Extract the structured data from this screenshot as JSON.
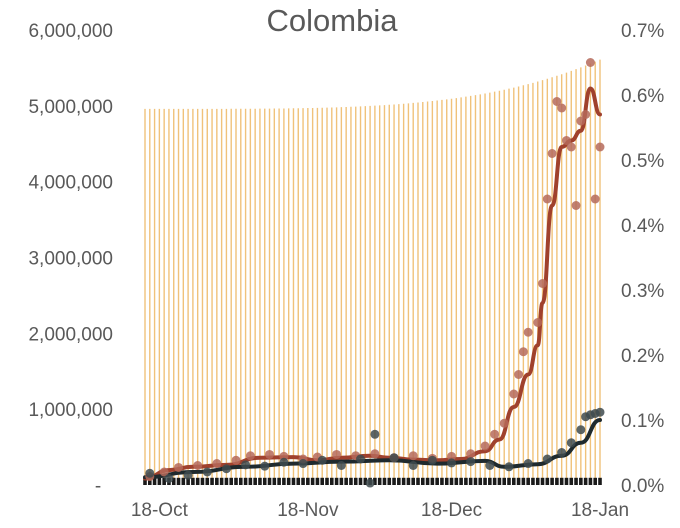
{
  "chart_data": {
    "type": "bar+line+scatter",
    "title": "Colombia",
    "x_tick_labels": [
      "18-Oct",
      "18-Nov",
      "18-Dec",
      "18-Jan"
    ],
    "y_left_tick_labels": [
      "-",
      "1,000,000",
      "2,000,000",
      "3,000,000",
      "4,000,000",
      "5,000,000",
      "6,000,000"
    ],
    "y_right_tick_labels": [
      "0.0%",
      "0.1%",
      "0.2%",
      "0.3%",
      "0.4%",
      "0.5%",
      "0.6%",
      "0.7%"
    ],
    "ylim_left": [
      0,
      6000000
    ],
    "ylim_right": [
      0,
      0.007
    ],
    "x_start": "2020-10-15",
    "x_end": "2021-01-18",
    "grid": false,
    "legend": "none",
    "colors": {
      "bars_tall": "#f0c27a",
      "bars_small": "#1a1a1a",
      "red_line": "#a0412d",
      "red_points": "#b56a5a",
      "dark_line": "#1f2a2e",
      "dark_points": "#3e4a4e"
    },
    "series": [
      {
        "kind": "bar",
        "axis": "left",
        "color_key": "bars_tall",
        "start": 4960000,
        "end": 5610000
      },
      {
        "kind": "bar",
        "axis": "left",
        "color_key": "bars_small",
        "value": 95000
      },
      {
        "kind": "line",
        "axis": "right",
        "color_key": "red_line",
        "points": [
          [
            "2020-10-15",
            0.0001
          ],
          [
            "2020-10-20",
            0.00023
          ],
          [
            "2020-10-25",
            0.00028
          ],
          [
            "2020-11-01",
            0.00031
          ],
          [
            "2020-11-08",
            0.00042
          ],
          [
            "2020-11-15",
            0.00043
          ],
          [
            "2020-11-20",
            0.00038
          ],
          [
            "2020-11-25",
            0.00042
          ],
          [
            "2020-12-01",
            0.00045
          ],
          [
            "2020-12-05",
            0.00042
          ],
          [
            "2020-12-10",
            0.00039
          ],
          [
            "2020-12-15",
            0.00038
          ],
          [
            "2020-12-20",
            0.0004
          ],
          [
            "2020-12-25",
            0.00052
          ],
          [
            "2020-12-28",
            0.0007
          ],
          [
            "2020-12-31",
            0.0012
          ],
          [
            "2021-01-03",
            0.0017
          ],
          [
            "2021-01-05",
            0.00215
          ],
          [
            "2021-01-06",
            0.0028
          ],
          [
            "2021-01-08",
            0.0043
          ],
          [
            "2021-01-10",
            0.0052
          ],
          [
            "2021-01-12",
            0.0053
          ],
          [
            "2021-01-14",
            0.00545
          ],
          [
            "2021-01-16",
            0.0061
          ],
          [
            "2021-01-18",
            0.0057
          ]
        ]
      },
      {
        "kind": "scatter",
        "axis": "right",
        "color_key": "red_points",
        "points": [
          [
            "2020-10-16",
            0.00013
          ],
          [
            "2020-10-19",
            0.0002
          ],
          [
            "2020-10-22",
            0.00027
          ],
          [
            "2020-10-26",
            0.0003
          ],
          [
            "2020-10-30",
            0.00033
          ],
          [
            "2020-11-03",
            0.00038
          ],
          [
            "2020-11-06",
            0.00045
          ],
          [
            "2020-11-10",
            0.00047
          ],
          [
            "2020-11-13",
            0.00044
          ],
          [
            "2020-11-17",
            0.0004
          ],
          [
            "2020-11-20",
            0.00043
          ],
          [
            "2020-11-24",
            0.00047
          ],
          [
            "2020-11-28",
            0.00045
          ],
          [
            "2020-12-02",
            0.00048
          ],
          [
            "2020-12-06",
            0.00042
          ],
          [
            "2020-12-10",
            0.00045
          ],
          [
            "2020-12-14",
            0.00041
          ],
          [
            "2020-12-18",
            0.00044
          ],
          [
            "2020-12-22",
            0.00048
          ],
          [
            "2020-12-25",
            0.0006
          ],
          [
            "2020-12-27",
            0.00078
          ],
          [
            "2020-12-29",
            0.00095
          ],
          [
            "2020-12-31",
            0.0014
          ],
          [
            "2021-01-01",
            0.0017
          ],
          [
            "2021-01-02",
            0.00205
          ],
          [
            "2021-01-03",
            0.00235
          ],
          [
            "2021-01-05",
            0.0025
          ],
          [
            "2021-01-06",
            0.0031
          ],
          [
            "2021-01-07",
            0.0044
          ],
          [
            "2021-01-08",
            0.0051
          ],
          [
            "2021-01-09",
            0.0059
          ],
          [
            "2021-01-10",
            0.0058
          ],
          [
            "2021-01-11",
            0.0053
          ],
          [
            "2021-01-12",
            0.0052
          ],
          [
            "2021-01-13",
            0.0043
          ],
          [
            "2021-01-14",
            0.0056
          ],
          [
            "2021-01-15",
            0.0057
          ],
          [
            "2021-01-16",
            0.0065
          ],
          [
            "2021-01-17",
            0.0044
          ],
          [
            "2021-01-18",
            0.0052
          ]
        ]
      },
      {
        "kind": "line",
        "axis": "right",
        "color_key": "dark_line",
        "points": [
          [
            "2020-10-15",
            0.00012
          ],
          [
            "2020-10-25",
            0.0002
          ],
          [
            "2020-11-05",
            0.00028
          ],
          [
            "2020-11-15",
            0.00033
          ],
          [
            "2020-11-25",
            0.00036
          ],
          [
            "2020-12-05",
            0.00038
          ],
          [
            "2020-12-15",
            0.00033
          ],
          [
            "2020-12-25",
            0.00037
          ],
          [
            "2020-12-29",
            0.00028
          ],
          [
            "2021-01-05",
            0.00032
          ],
          [
            "2021-01-10",
            0.00045
          ],
          [
            "2021-01-14",
            0.00065
          ],
          [
            "2021-01-18",
            0.001
          ]
        ]
      },
      {
        "kind": "scatter",
        "axis": "right",
        "color_key": "dark_points",
        "points": [
          [
            "2020-10-16",
            0.00018
          ],
          [
            "2020-10-20",
            0.0001
          ],
          [
            "2020-10-24",
            0.00015
          ],
          [
            "2020-10-28",
            0.0002
          ],
          [
            "2020-11-01",
            0.00025
          ],
          [
            "2020-11-05",
            0.00031
          ],
          [
            "2020-11-09",
            0.00029
          ],
          [
            "2020-11-13",
            0.00035
          ],
          [
            "2020-11-17",
            0.00033
          ],
          [
            "2020-11-21",
            0.00038
          ],
          [
            "2020-11-25",
            0.0003
          ],
          [
            "2020-11-29",
            0.0004
          ],
          [
            "2020-12-01",
            3e-05
          ],
          [
            "2020-12-02",
            0.00078
          ],
          [
            "2020-12-06",
            0.00042
          ],
          [
            "2020-12-10",
            0.0003
          ],
          [
            "2020-12-14",
            0.00038
          ],
          [
            "2020-12-18",
            0.00034
          ],
          [
            "2020-12-22",
            0.00036
          ],
          [
            "2020-12-26",
            0.0003
          ],
          [
            "2020-12-30",
            0.00028
          ],
          [
            "2021-01-03",
            0.00033
          ],
          [
            "2021-01-07",
            0.0004
          ],
          [
            "2021-01-10",
            0.0005
          ],
          [
            "2021-01-12",
            0.00065
          ],
          [
            "2021-01-14",
            0.00085
          ],
          [
            "2021-01-15",
            0.00105
          ],
          [
            "2021-01-16",
            0.00108
          ],
          [
            "2021-01-17",
            0.0011
          ],
          [
            "2021-01-18",
            0.00112
          ]
        ]
      }
    ]
  }
}
